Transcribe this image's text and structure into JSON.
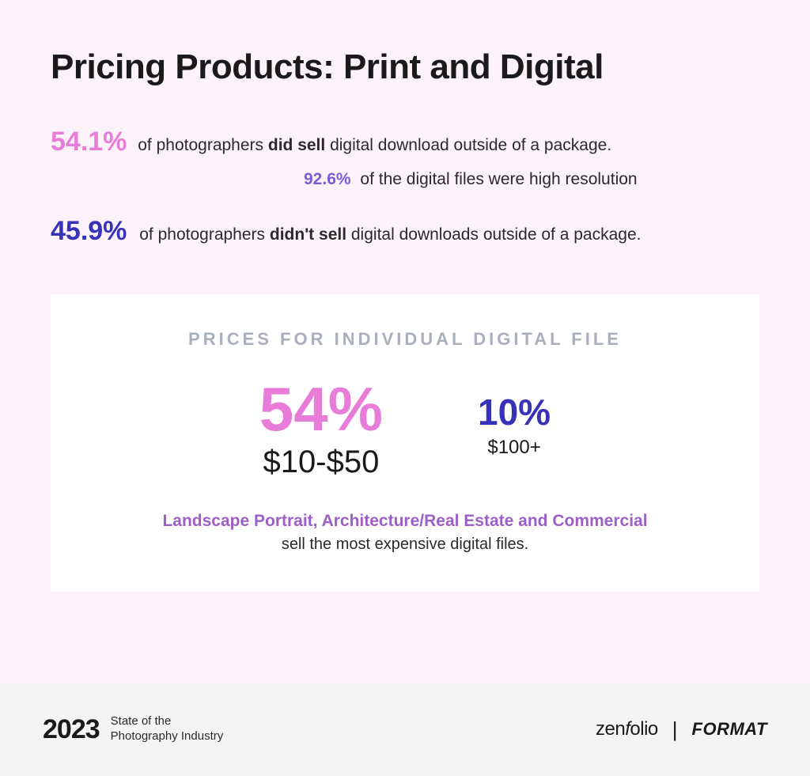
{
  "colors": {
    "page_bg": "#fcf2fa",
    "card_bg": "#ffffff",
    "footer_bg": "#f4f4f4",
    "text": "#1a1a1a",
    "muted_heading": "#a9afbb",
    "pink": "#e87dd9",
    "blue": "#3633b8",
    "purple_inline": "#7b5cd6",
    "purple_caption": "#9b5fc6"
  },
  "title": "Pricing Products: Print and Digital",
  "stats": {
    "sell": {
      "pct": "54.1%",
      "prefix": "of photographers ",
      "bold": "did sell",
      "suffix": " digital download outside of a package."
    },
    "high_res": {
      "pct": "92.6%",
      "text": "of the digital files were high resolution"
    },
    "no_sell": {
      "pct": "45.9%",
      "prefix": "of photographers ",
      "bold": "didn't sell",
      "suffix": " digital downloads outside of a package."
    }
  },
  "card": {
    "heading": "PRICES FOR INDIVIDUAL DIGITAL FILE",
    "prices": [
      {
        "pct": "54%",
        "range": "$10-$50",
        "pct_color": "#e87dd9",
        "pct_fontsize": 78,
        "range_fontsize": 40
      },
      {
        "pct": "10%",
        "range": "$100+",
        "pct_color": "#3633b8",
        "pct_fontsize": 46,
        "range_fontsize": 24
      }
    ],
    "caption_bold": "Landscape Portrait, Architecture/Real Estate and Commercial",
    "caption_rest": "sell the most expensive digital files."
  },
  "footer": {
    "year": "2023",
    "subtitle_line1": "State of the",
    "subtitle_line2": "Photography Industry",
    "brand1_a": "zen",
    "brand1_b": "f",
    "brand1_c": "olio",
    "divider": "|",
    "brand2": "FORMAT"
  }
}
